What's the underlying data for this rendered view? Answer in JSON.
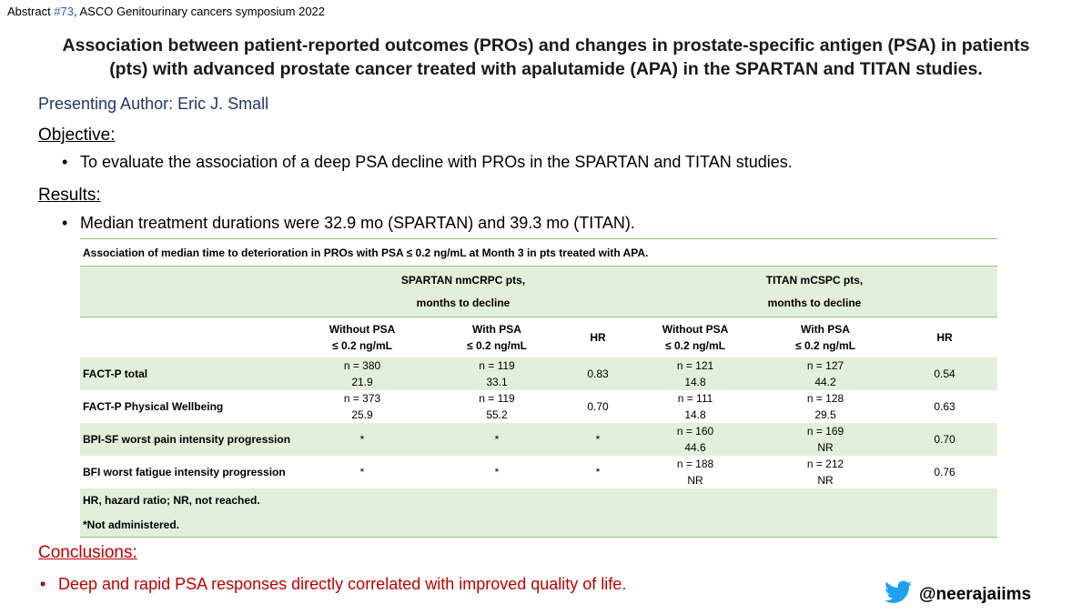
{
  "header": {
    "abstract_prefix": "Abstract ",
    "abstract_number": "#73",
    "abstract_suffix": ", ASCO Genitourinary cancers symposium 2022"
  },
  "title": {
    "line1": "Association between patient-reported outcomes (PROs) and changes in prostate-specific antigen (PSA) in patients",
    "line2": "(pts) with advanced prostate cancer treated with apalutamide (APA) in the SPARTAN and TITAN studies."
  },
  "author": "Presenting Author: Eric J. Small",
  "objective": {
    "heading": "Objective:",
    "bullet": "To evaluate the association of a deep PSA decline with PROs in the SPARTAN and TITAN studies."
  },
  "results": {
    "heading": "Results:",
    "bullet": "Median treatment durations were 32.9 mo (SPARTAN) and 39.3 mo (TITAN)."
  },
  "table": {
    "caption": "Association of median time to deterioration in PROs with PSA ≤ 0.2 ng/mL at Month 3 in pts treated with APA.",
    "groups": {
      "spartan_line1": "SPARTAN nmCRPC pts,",
      "spartan_line2": "months to decline",
      "titan_line1": "TITAN mCSPC pts,",
      "titan_line2": "months to decline"
    },
    "columns": {
      "without_line1": "Without PSA",
      "without_line2": "≤ 0.2 ng/mL",
      "with_line1": "With PSA",
      "with_line2": "≤ 0.2 ng/mL",
      "hr": "HR"
    },
    "rows": [
      {
        "label": "FACT-P total",
        "s_without_n": "n = 380",
        "s_without_v": "21.9",
        "s_with_n": "n = 119",
        "s_with_v": "33.1",
        "s_hr": "0.83",
        "t_without_n": "n = 121",
        "t_without_v": "14.8",
        "t_with_n": "n = 127",
        "t_with_v": "44.2",
        "t_hr": "0.54"
      },
      {
        "label": "FACT-P Physical Wellbeing",
        "s_without_n": "n = 373",
        "s_without_v": "25.9",
        "s_with_n": "n = 119",
        "s_with_v": "55.2",
        "s_hr": "0.70",
        "t_without_n": "n = 111",
        "t_without_v": "14.8",
        "t_with_n": "n = 128",
        "t_with_v": "29.5",
        "t_hr": "0.63"
      },
      {
        "label": "BPI-SF worst pain intensity progression",
        "s_without_n": "*",
        "s_with_n": "*",
        "s_hr": "*",
        "t_without_n": "n = 160",
        "t_without_v": "44.6",
        "t_with_n": "n = 169",
        "t_with_v": "NR",
        "t_hr": "0.70"
      },
      {
        "label": "BFI worst fatigue intensity progression",
        "s_without_n": "*",
        "s_with_n": "*",
        "s_hr": "*",
        "t_without_n": "n = 188",
        "t_without_v": "NR",
        "t_with_n": "n = 212",
        "t_with_v": "NR",
        "t_hr": "0.76"
      }
    ],
    "footnote1": "HR, hazard ratio; NR, not reached.",
    "footnote2": "*Not administered."
  },
  "conclusions": {
    "heading": "Conclusions:",
    "bullet": "Deep and rapid PSA responses directly correlated with improved quality of life."
  },
  "social": {
    "icon": "twitter-bird-icon",
    "handle": "@neerajaiims",
    "color": "#1da1f2"
  }
}
